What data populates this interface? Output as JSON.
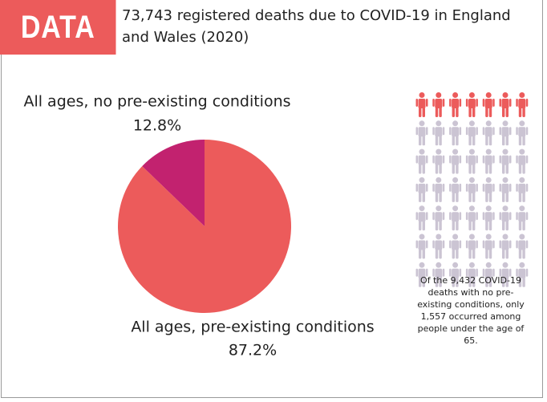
{
  "chart_data": {
    "type": "pie",
    "badge": "DATA",
    "title": "73,743 registered deaths due to COVID-19 in England and Wales (2020)",
    "categories": [
      "All ages, no pre-existing conditions",
      "All ages, pre-existing conditions"
    ],
    "values": [
      12.8,
      87.2
    ],
    "value_labels": [
      "12.8%",
      "87.2%"
    ],
    "colors": [
      "#c2226f",
      "#ec5b5b"
    ],
    "note": "Of the 9,432 COVID-19 deaths with no pre-existing conditions, only 1,557 occurred among people under the age of 65."
  }
}
